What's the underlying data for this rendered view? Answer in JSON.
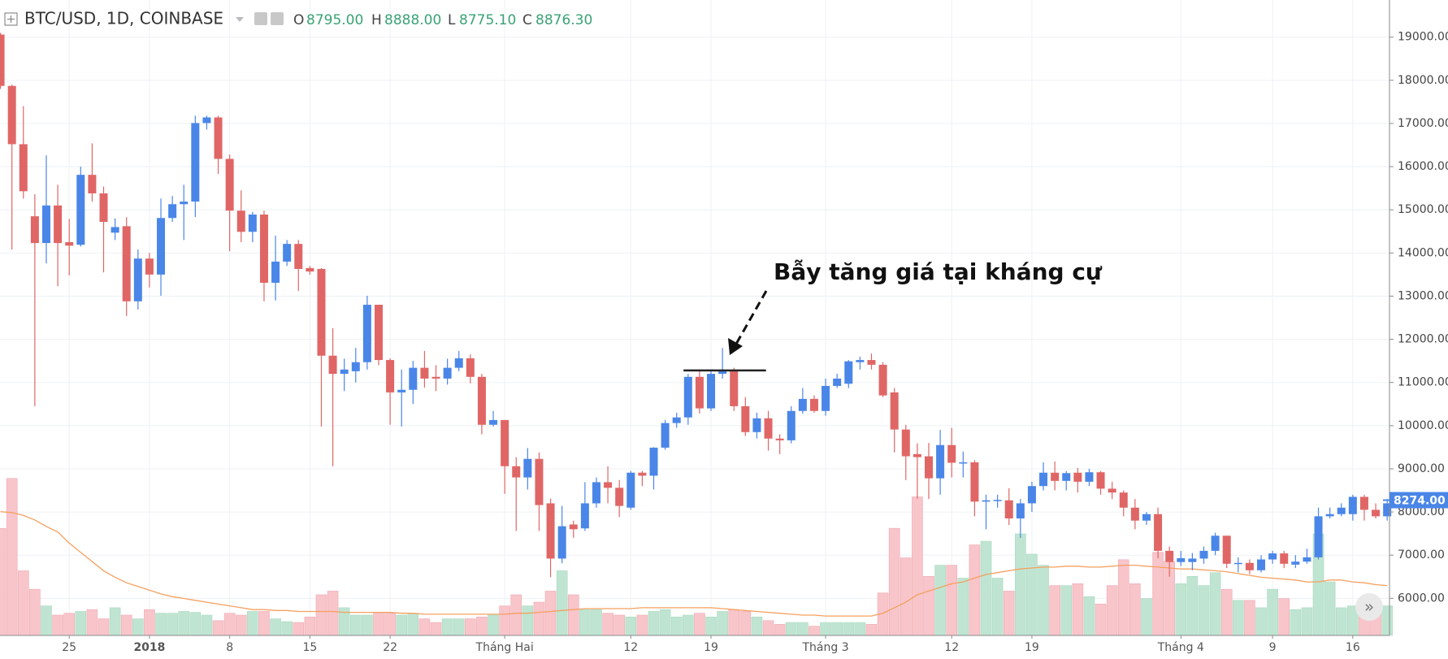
{
  "chart_data": {
    "type": "candlestick",
    "title": "BTC/USD, 1D, COINBASE",
    "header_values": [
      {
        "name": "O",
        "value": "8795.00"
      },
      {
        "name": "H",
        "value": "8888.00"
      },
      {
        "name": "L",
        "value": "8775.10"
      },
      {
        "name": "C",
        "value": "8876.30"
      }
    ],
    "categories": [
      null,
      null,
      null,
      null,
      null,
      null,
      "25",
      null,
      null,
      null,
      null,
      null,
      null,
      "2018",
      null,
      null,
      null,
      null,
      null,
      null,
      "8",
      null,
      null,
      null,
      null,
      null,
      null,
      "15",
      null,
      null,
      null,
      null,
      null,
      null,
      "22",
      null,
      null,
      null,
      null,
      null,
      null,
      null,
      null,
      null,
      "Tháng Hai",
      null,
      null,
      null,
      null,
      null,
      null,
      null,
      null,
      null,
      null,
      "12",
      null,
      null,
      null,
      null,
      null,
      null,
      "19",
      null,
      null,
      null,
      null,
      null,
      null,
      null,
      null,
      null,
      "Tháng 3",
      null,
      null,
      null,
      null,
      null,
      null,
      null,
      null,
      null,
      null,
      "12",
      null,
      null,
      null,
      null,
      null,
      null,
      "19",
      null,
      null,
      null,
      null,
      null,
      null,
      null,
      null,
      null,
      null,
      null,
      null,
      "Tháng 4",
      null,
      null,
      null,
      null,
      null,
      null,
      null,
      "9",
      null,
      null,
      null,
      null,
      null,
      null,
      "16",
      null,
      null,
      null
    ],
    "open": [
      19060,
      17870,
      16520,
      14850,
      14230,
      15100,
      14250,
      14190,
      15810,
      15380,
      14470,
      14620,
      12880,
      13870,
      13500,
      14810,
      15130,
      15190,
      17010,
      17140,
      16180,
      14980,
      14490,
      14890,
      13310,
      13800,
      14210,
      13650,
      13630,
      11620,
      11200,
      11260,
      11470,
      12800,
      11520,
      10770,
      10830,
      11340,
      11130,
      11090,
      11340,
      11560,
      11130,
      10020,
      10130,
      9060,
      8800,
      9230,
      8200,
      6920,
      7710,
      7620,
      8200,
      8690,
      8560,
      8100,
      8910,
      8840,
      9490,
      10060,
      10190,
      11130,
      10400,
      11200,
      11280,
      10450,
      9850,
      10170,
      9700,
      9660,
      10340,
      10620,
      10340,
      10920,
      10970,
      11470,
      11520,
      11410,
      10770,
      9910,
      9340,
      9290,
      8780,
      9550,
      9140,
      9150,
      8240,
      8270,
      8270,
      7850,
      8200,
      8600,
      8910,
      8720,
      8910,
      8700,
      8920,
      8540,
      8450,
      8100,
      7800,
      7950,
      7100,
      6840,
      6840,
      6920,
      7100,
      7450,
      6800,
      6820,
      6650,
      6900,
      7040,
      6780,
      6850,
      6950,
      7900,
      7950,
      7950,
      8350,
      8050,
      7900
    ],
    "high": [
      19100,
      17900,
      17400,
      15360,
      16260,
      15580,
      14790,
      16000,
      16540,
      15540,
      14800,
      14830,
      14080,
      14000,
      15260,
      15320,
      15580,
      17180,
      17180,
      17180,
      16280,
      15450,
      14950,
      14980,
      14400,
      14300,
      14300,
      13700,
      13650,
      12260,
      11550,
      11800,
      13010,
      12800,
      11560,
      11300,
      11500,
      11730,
      11400,
      11550,
      11730,
      11650,
      11200,
      10340,
      10130,
      9270,
      9480,
      9380,
      8310,
      8140,
      7800,
      8690,
      8800,
      9060,
      8740,
      8950,
      8950,
      9500,
      10130,
      10300,
      11200,
      11300,
      11300,
      11800,
      11340,
      10660,
      10300,
      10340,
      9800,
      10450,
      10870,
      10700,
      11090,
      11200,
      11520,
      11600,
      11670,
      11470,
      10870,
      10020,
      9590,
      9600,
      9900,
      9950,
      9400,
      9200,
      8400,
      8400,
      8550,
      8300,
      8700,
      9150,
      9170,
      8950,
      9020,
      9000,
      8950,
      8700,
      8500,
      8300,
      8000,
      8100,
      7200,
      7100,
      7050,
      7200,
      7520,
      7450,
      6950,
      6900,
      7000,
      7100,
      7100,
      7000,
      7150,
      8100,
      8100,
      8200,
      8400,
      8400,
      8200,
      8300
    ],
    "low": [
      17800,
      14080,
      15260,
      10450,
      13760,
      13230,
      13480,
      14150,
      15190,
      13550,
      14300,
      12540,
      12690,
      13200,
      13010,
      14720,
      14300,
      14830,
      16860,
      15830,
      14040,
      14250,
      14250,
      12880,
      12900,
      13700,
      13120,
      13500,
      9980,
      9060,
      10800,
      11000,
      11300,
      11400,
      10020,
      9980,
      10500,
      10880,
      10800,
      10950,
      11260,
      10980,
      9800,
      9980,
      8420,
      7560,
      8520,
      7560,
      6490,
      6810,
      7400,
      7560,
      8100,
      8200,
      7880,
      8050,
      8600,
      8520,
      9440,
      9950,
      10020,
      10280,
      10340,
      11090,
      10340,
      9760,
      9700,
      9420,
      9340,
      9590,
      10280,
      10300,
      10230,
      10870,
      10870,
      11300,
      11300,
      10660,
      9380,
      8740,
      8310,
      8300,
      8400,
      8800,
      8800,
      7900,
      7600,
      8100,
      7700,
      7400,
      8000,
      8500,
      8500,
      8500,
      8450,
      8600,
      8400,
      8300,
      7900,
      7600,
      7700,
      6930,
      6500,
      6750,
      6650,
      6800,
      7000,
      6700,
      6600,
      6560,
      6600,
      6800,
      6700,
      6700,
      6800,
      6900,
      7850,
      7900,
      7800,
      7800,
      7850,
      7800
    ],
    "close": [
      17870,
      16520,
      15430,
      14230,
      15100,
      14230,
      14170,
      15810,
      15380,
      14720,
      14600,
      12880,
      13870,
      13500,
      14810,
      15130,
      15190,
      17010,
      17140,
      16180,
      14980,
      14490,
      14890,
      13310,
      13800,
      14210,
      13630,
      13570,
      11620,
      11200,
      11300,
      11470,
      12800,
      11520,
      10770,
      10830,
      11340,
      11090,
      11090,
      11340,
      11560,
      11130,
      10020,
      10130,
      9060,
      8800,
      9230,
      8160,
      6920,
      7670,
      7600,
      8200,
      8690,
      8560,
      8140,
      8910,
      8840,
      9490,
      10060,
      10190,
      11130,
      10400,
      11200,
      11280,
      10450,
      9850,
      10170,
      9700,
      9660,
      10340,
      10620,
      10340,
      10920,
      11090,
      11490,
      11520,
      11410,
      10700,
      9910,
      9290,
      9270,
      8780,
      9550,
      9140,
      9150,
      8240,
      8270,
      8280,
      7850,
      8200,
      8600,
      8910,
      8720,
      8900,
      8700,
      8920,
      8540,
      8450,
      8100,
      7800,
      7950,
      7100,
      6840,
      6930,
      6920,
      7100,
      7450,
      6800,
      6820,
      6650,
      6900,
      7040,
      6800,
      6850,
      6950,
      7900,
      7950,
      8100,
      8350,
      8050,
      7900,
      8200
    ],
    "volume": [
      116,
      170,
      70,
      50,
      32,
      22,
      24,
      26,
      28,
      18,
      30,
      22,
      18,
      28,
      24,
      24,
      26,
      25,
      22,
      16,
      24,
      22,
      26,
      26,
      18,
      15,
      14,
      20,
      44,
      48,
      30,
      22,
      22,
      24,
      24,
      22,
      24,
      18,
      14,
      18,
      18,
      18,
      20,
      22,
      32,
      44,
      32,
      36,
      48,
      70,
      44,
      28,
      28,
      24,
      22,
      20,
      22,
      26,
      28,
      20,
      22,
      24,
      20,
      26,
      28,
      26,
      20,
      16,
      12,
      14,
      14,
      10,
      14,
      14,
      14,
      14,
      12,
      46,
      116,
      84,
      150,
      64,
      76,
      76,
      62,
      98,
      102,
      62,
      48,
      110,
      88,
      76,
      54,
      54,
      56,
      42,
      34,
      54,
      82,
      56,
      40,
      90,
      80,
      56,
      64,
      54,
      68,
      50,
      38,
      38,
      30,
      50,
      40,
      28,
      30,
      110,
      58,
      30,
      32,
      40,
      30,
      32
    ],
    "volume_ma": [
      134,
      133,
      130,
      125,
      118,
      112,
      100,
      90,
      80,
      70,
      63,
      57,
      53,
      49,
      45,
      42,
      40,
      38,
      36,
      34,
      32,
      30,
      28,
      28,
      27,
      27,
      26,
      26,
      26,
      26,
      25,
      25,
      25,
      25,
      25,
      24,
      24,
      23,
      23,
      23,
      23,
      23,
      23,
      23,
      23,
      24,
      24,
      25,
      26,
      27,
      28,
      29,
      29,
      29,
      29,
      29,
      30,
      30,
      30,
      30,
      30,
      30,
      30,
      29,
      28,
      27,
      26,
      25,
      24,
      23,
      22,
      22,
      21,
      21,
      21,
      21,
      21,
      24,
      30,
      36,
      44,
      48,
      52,
      56,
      58,
      62,
      66,
      68,
      70,
      72,
      73,
      74,
      74,
      75,
      75,
      74,
      74,
      75,
      76,
      76,
      75,
      74,
      73,
      72,
      72,
      71,
      70,
      69,
      67,
      65,
      63,
      62,
      61,
      60,
      58,
      58,
      60,
      60,
      58,
      57,
      55,
      54
    ],
    "up_color": "#4a86e8",
    "down_color": "#e06666",
    "volume_up_color": "#bfe5d2",
    "volume_down_color": "#f8c5ca",
    "ma_color": "#f5a05f",
    "ylim": [
      5140,
      19860
    ],
    "yticks": [
      {
        "value": 6000,
        "label": "6000.00"
      },
      {
        "value": 7000,
        "label": "7000.00"
      },
      {
        "value": 8000,
        "label": "8000.00"
      },
      {
        "value": 9000,
        "label": "9000.00"
      },
      {
        "value": 10000,
        "label": "10000.00"
      },
      {
        "value": 11000,
        "label": "11000.00"
      },
      {
        "value": 12000,
        "label": "12000.00"
      },
      {
        "value": 13000,
        "label": "13000.00"
      },
      {
        "value": 14000,
        "label": "14000.00"
      },
      {
        "value": 15000,
        "label": "15000.00"
      },
      {
        "value": 16000,
        "label": "16000.00"
      },
      {
        "value": 17000,
        "label": "17000.00"
      },
      {
        "value": 18000,
        "label": "18000.00"
      },
      {
        "value": 19000,
        "label": "19000.00"
      }
    ],
    "grid": true,
    "last_price": {
      "value": 8274,
      "label": "8274.00"
    },
    "annotation": {
      "text": "Bẫy tăng giá tại kháng cự",
      "level": 11280
    }
  }
}
